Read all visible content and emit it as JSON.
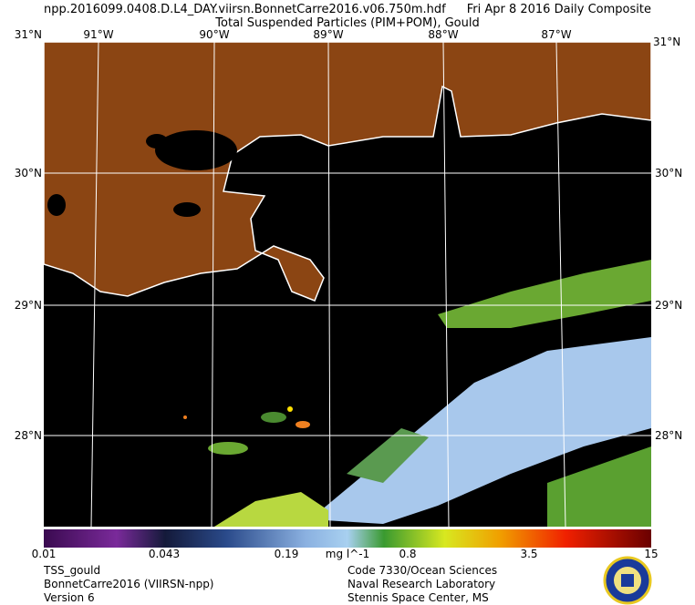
{
  "header": {
    "filename": "npp.2016099.0408.D.L4_DAY.viirsn.BonnetCarre2016.v06.750m.hdf",
    "date": "Fri Apr  8 2016 Daily Composite",
    "title": "Total Suspended Particles (PIM+POM), Gould"
  },
  "map": {
    "lon_labels": [
      "91°W",
      "90°W",
      "89°W",
      "88°W",
      "87°W"
    ],
    "lat_labels": [
      "31°N",
      "30°N",
      "29°N",
      "28°N"
    ]
  },
  "colorbar": {
    "labels": [
      "0.01",
      "0.043",
      "0.19",
      "mg l^-1",
      "0.8",
      "3.5",
      "15"
    ]
  },
  "footer": {
    "left": [
      "TSS_gould",
      "BonnetCarre2016 (VIIRSN-npp)",
      "Version 6"
    ],
    "right": [
      "Code 7330/Ocean Sciences",
      "Naval Research Laboratory",
      "Stennis Space Center, MS"
    ]
  }
}
